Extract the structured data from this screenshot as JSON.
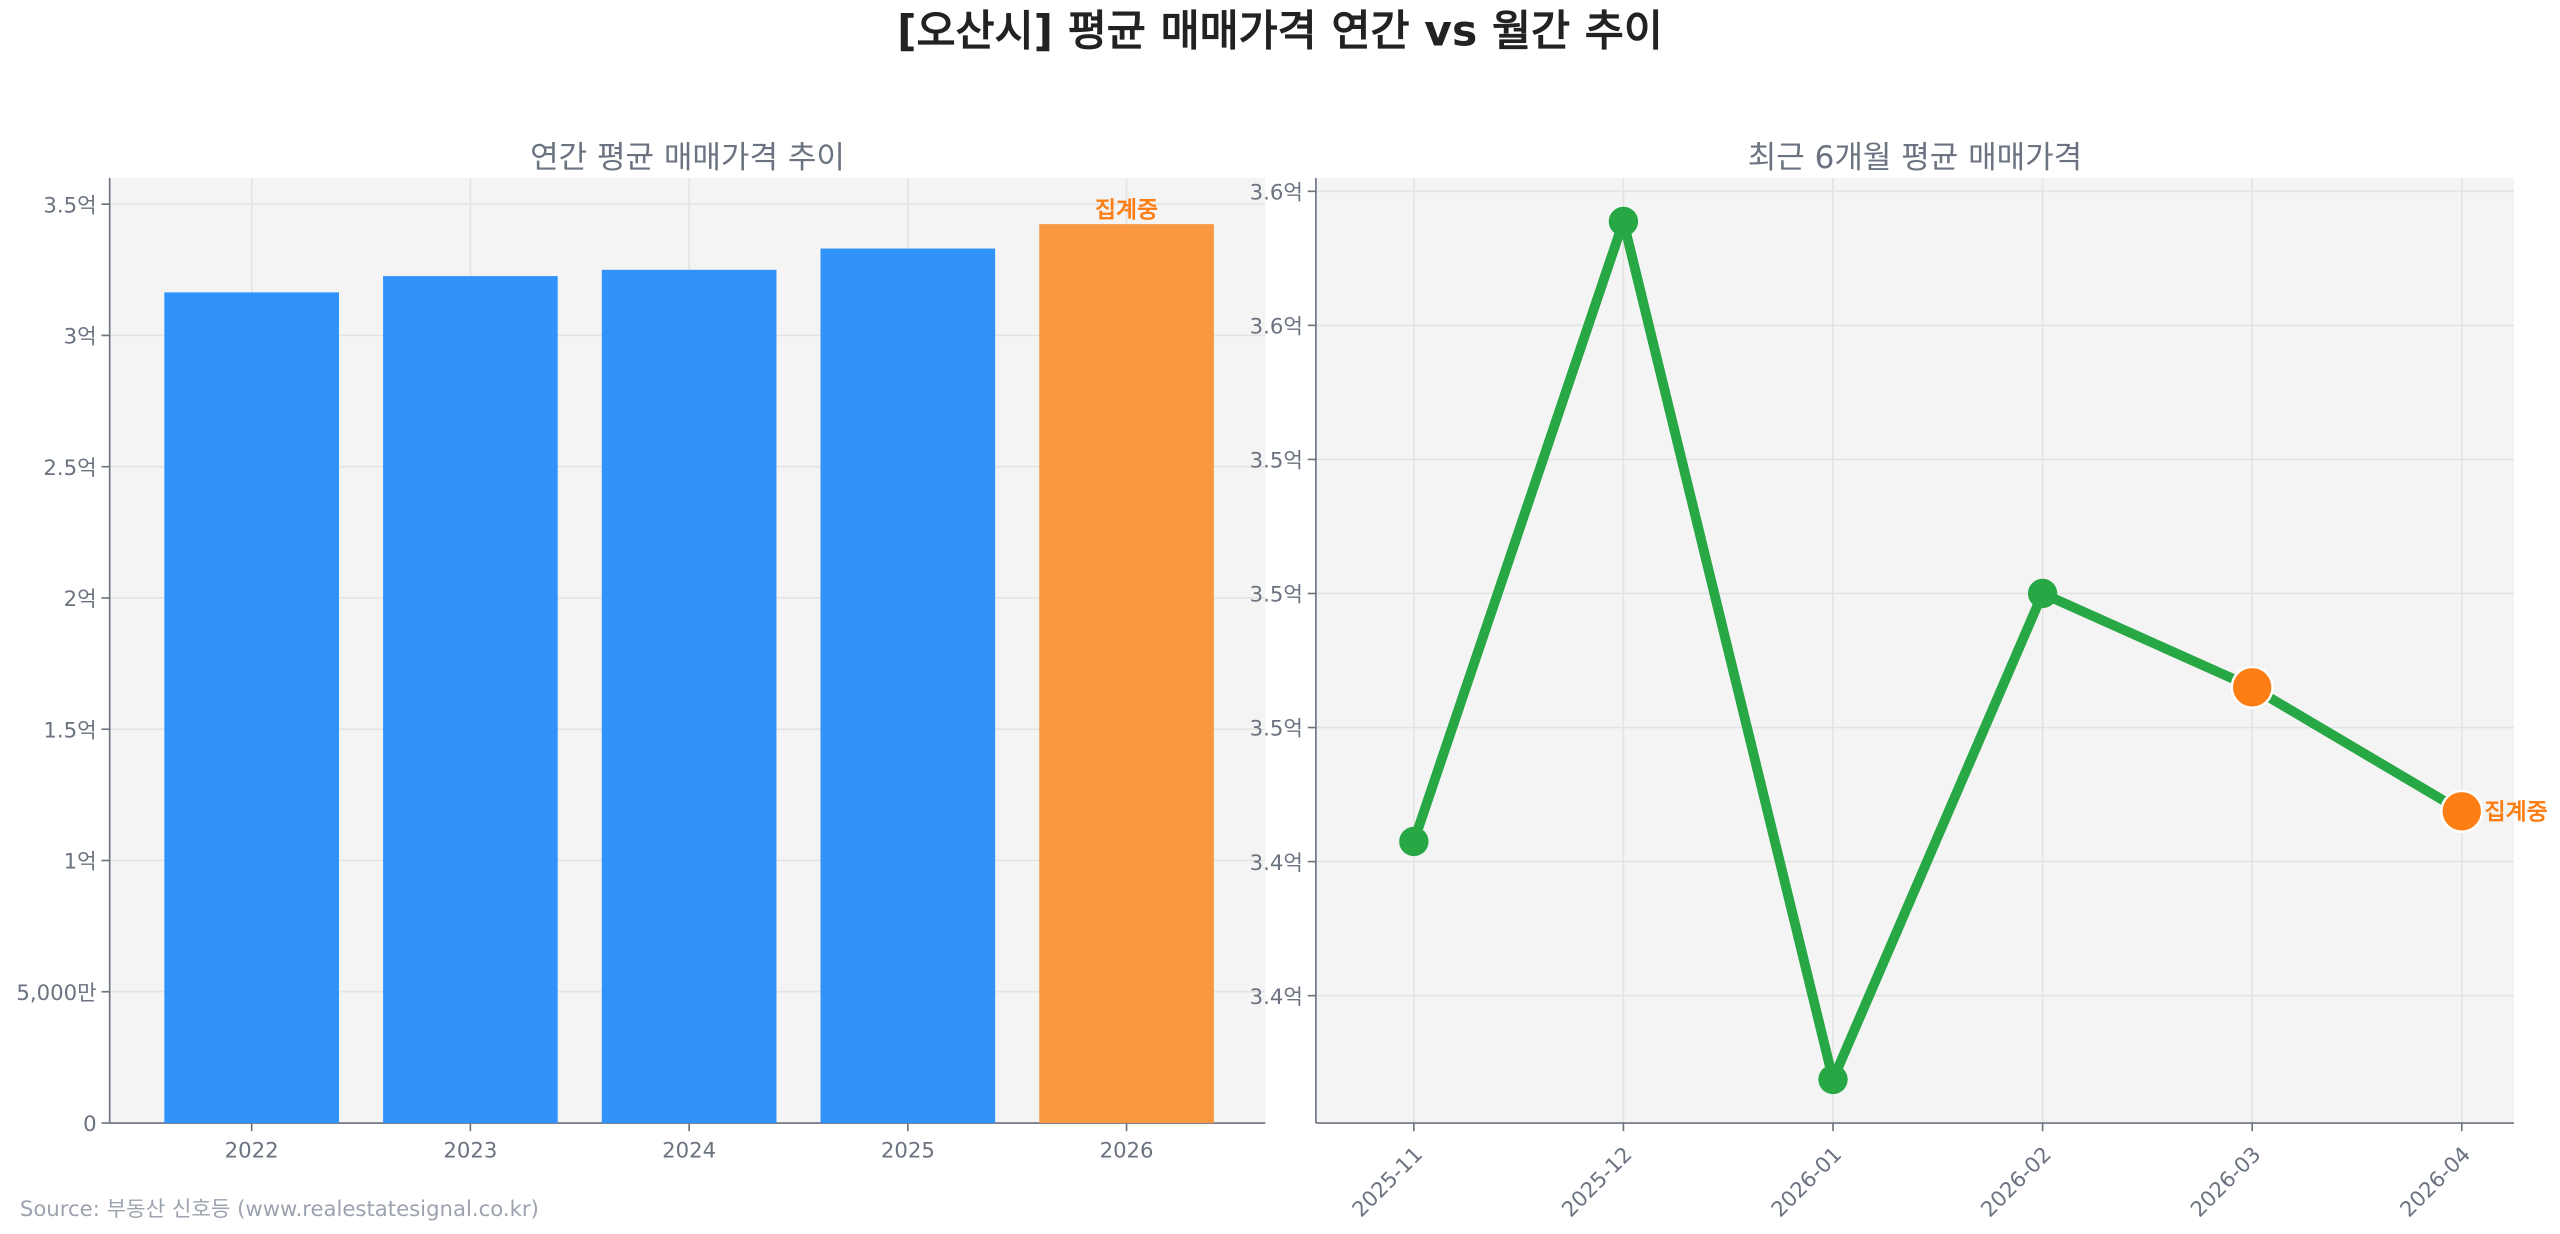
{
  "title": "[오산시] 평균 매매가격 연간 vs 월간 추이",
  "source": "Source: 부동산 신호등 (www.realestatesignal.co.kr)",
  "colors": {
    "bar": "#3193fa",
    "bar_partial": "#f99841",
    "line": "#28a745",
    "partial_marker": "#fd7e14",
    "partial_text": "#fd7e14"
  },
  "chart_data": [
    {
      "type": "bar",
      "title": "연간 평균 매매가격 추이",
      "categories": [
        "2022",
        "2023",
        "2024",
        "2025",
        "2026"
      ],
      "values": [
        3.164,
        3.226,
        3.25,
        3.331,
        3.424
      ],
      "unit": "억",
      "partial": [
        false,
        false,
        false,
        false,
        true
      ],
      "partial_label": "집계중",
      "ylim": [
        0,
        3.6
      ],
      "yticks": [
        0,
        0.5,
        1,
        1.5,
        2,
        2.5,
        3,
        3.5
      ],
      "ytick_labels": [
        "0",
        "5,000만",
        "1억",
        "1.5억",
        "2억",
        "2.5억",
        "3억",
        "3.5억"
      ],
      "grid": true
    },
    {
      "type": "line",
      "title": "최근 6개월 평균 매매가격",
      "categories": [
        "2025-11",
        "2025-12",
        "2026-01",
        "2026-02",
        "2026-03",
        "2026-04"
      ],
      "values": [
        3.426,
        3.611,
        3.355,
        3.5,
        3.472,
        3.435
      ],
      "unit": "억",
      "partial": [
        false,
        false,
        false,
        false,
        true,
        true
      ],
      "partial_label": "집계중",
      "ylim": [
        3.342,
        3.624
      ],
      "yticks": [
        3.38,
        3.42,
        3.46,
        3.5,
        3.54,
        3.58,
        3.62
      ],
      "ytick_labels": [
        "3.4억",
        "3.4억",
        "3.5억",
        "3.5억",
        "3.5억",
        "3.6억",
        "3.6억"
      ],
      "grid": true
    }
  ]
}
